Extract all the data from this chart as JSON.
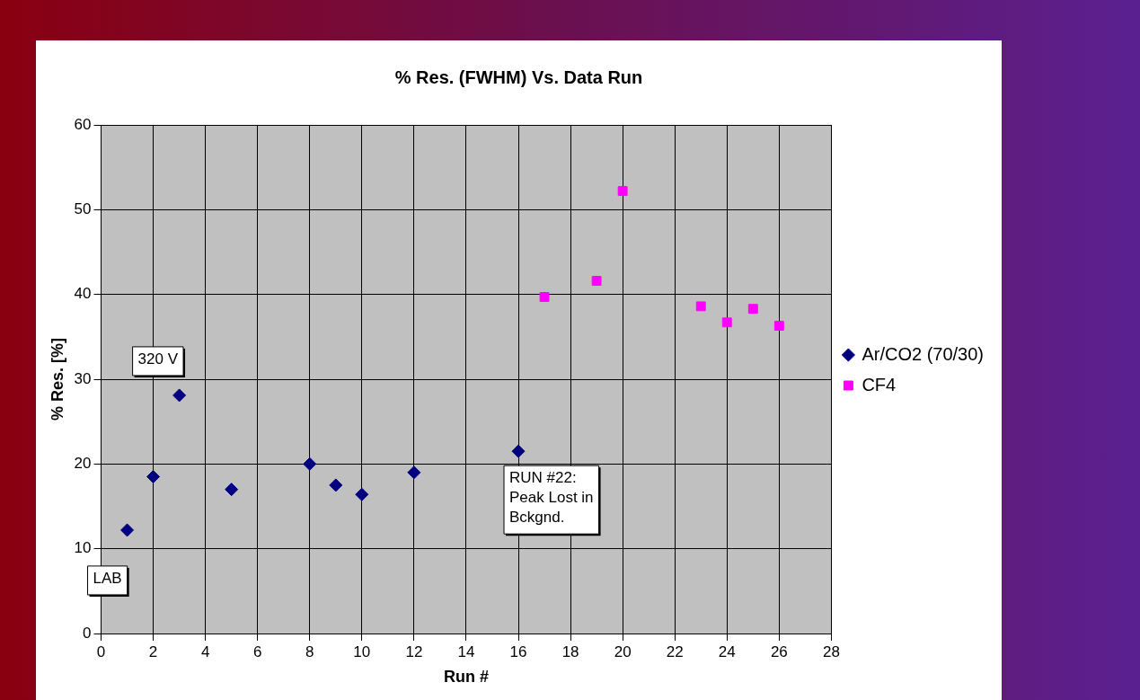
{
  "chart_data": {
    "type": "scatter",
    "title": "% Res. (FWHM) Vs. Data Run",
    "xlabel": "Run #",
    "ylabel": "% Res. [%]",
    "series": [
      {
        "name": "Ar/CO2 (70/30)",
        "color": "#000080",
        "marker": "diamond",
        "x": [
          1,
          2,
          3,
          5,
          8,
          9,
          10,
          12,
          16
        ],
        "values": [
          12.2,
          18.5,
          28.1,
          17.0,
          20.0,
          17.5,
          16.4,
          19.0,
          21.5
        ]
      },
      {
        "name": "CF4",
        "color": "#ff00ff",
        "marker": "square",
        "x": [
          17,
          19,
          20,
          23,
          24,
          25,
          26
        ],
        "values": [
          39.7,
          41.6,
          52.2,
          38.6,
          36.7,
          38.3,
          36.3
        ]
      }
    ],
    "xlim": [
      0,
      28
    ],
    "xticks": [
      0,
      2,
      4,
      6,
      8,
      10,
      12,
      14,
      16,
      18,
      20,
      22,
      24,
      26,
      28
    ],
    "ylim": [
      0,
      60
    ],
    "yticks": [
      0,
      10,
      20,
      30,
      40,
      50,
      60
    ],
    "grid": true,
    "legend": "right",
    "annotations": [
      {
        "text": "LAB",
        "x": 1,
        "y": 12.2
      },
      {
        "text": "320 V",
        "x": 3,
        "y": 28.1
      },
      {
        "text": "RUN #22:\nPeak Lost in\nBckgnd.",
        "x": 16,
        "y": 21.5
      }
    ]
  }
}
